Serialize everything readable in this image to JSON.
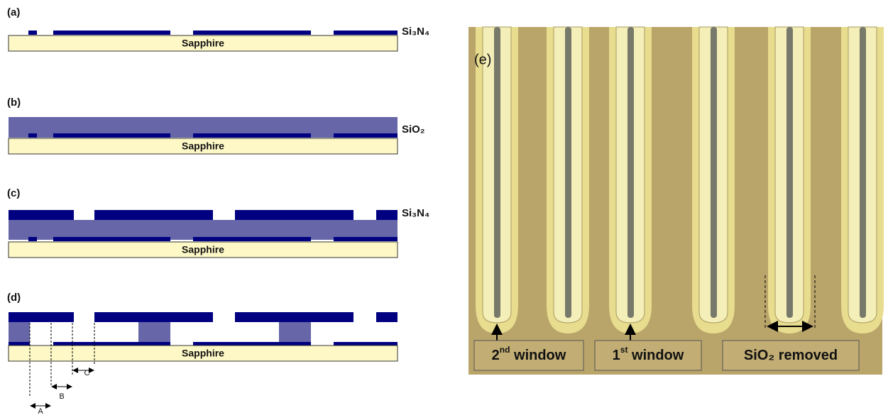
{
  "panels": {
    "a": {
      "label": "(a)",
      "layer": "Si₃N₄",
      "substrate": "Sapphire"
    },
    "b": {
      "label": "(b)",
      "layer": "SiO₂",
      "substrate": "Sapphire"
    },
    "c": {
      "label": "(c)",
      "layer": "Si₃N₄",
      "substrate": "Sapphire"
    },
    "d": {
      "label": "(d)",
      "substrate": "Sapphire",
      "dimensions": [
        "A",
        "B",
        "C"
      ]
    },
    "e": {
      "label": "(e)",
      "callouts": [
        {
          "ordinal": "2",
          "suffix": "nd",
          "text": " window"
        },
        {
          "ordinal": "1",
          "suffix": "st",
          "text": " window"
        },
        {
          "text": "SiO₂ removed"
        }
      ]
    }
  }
}
